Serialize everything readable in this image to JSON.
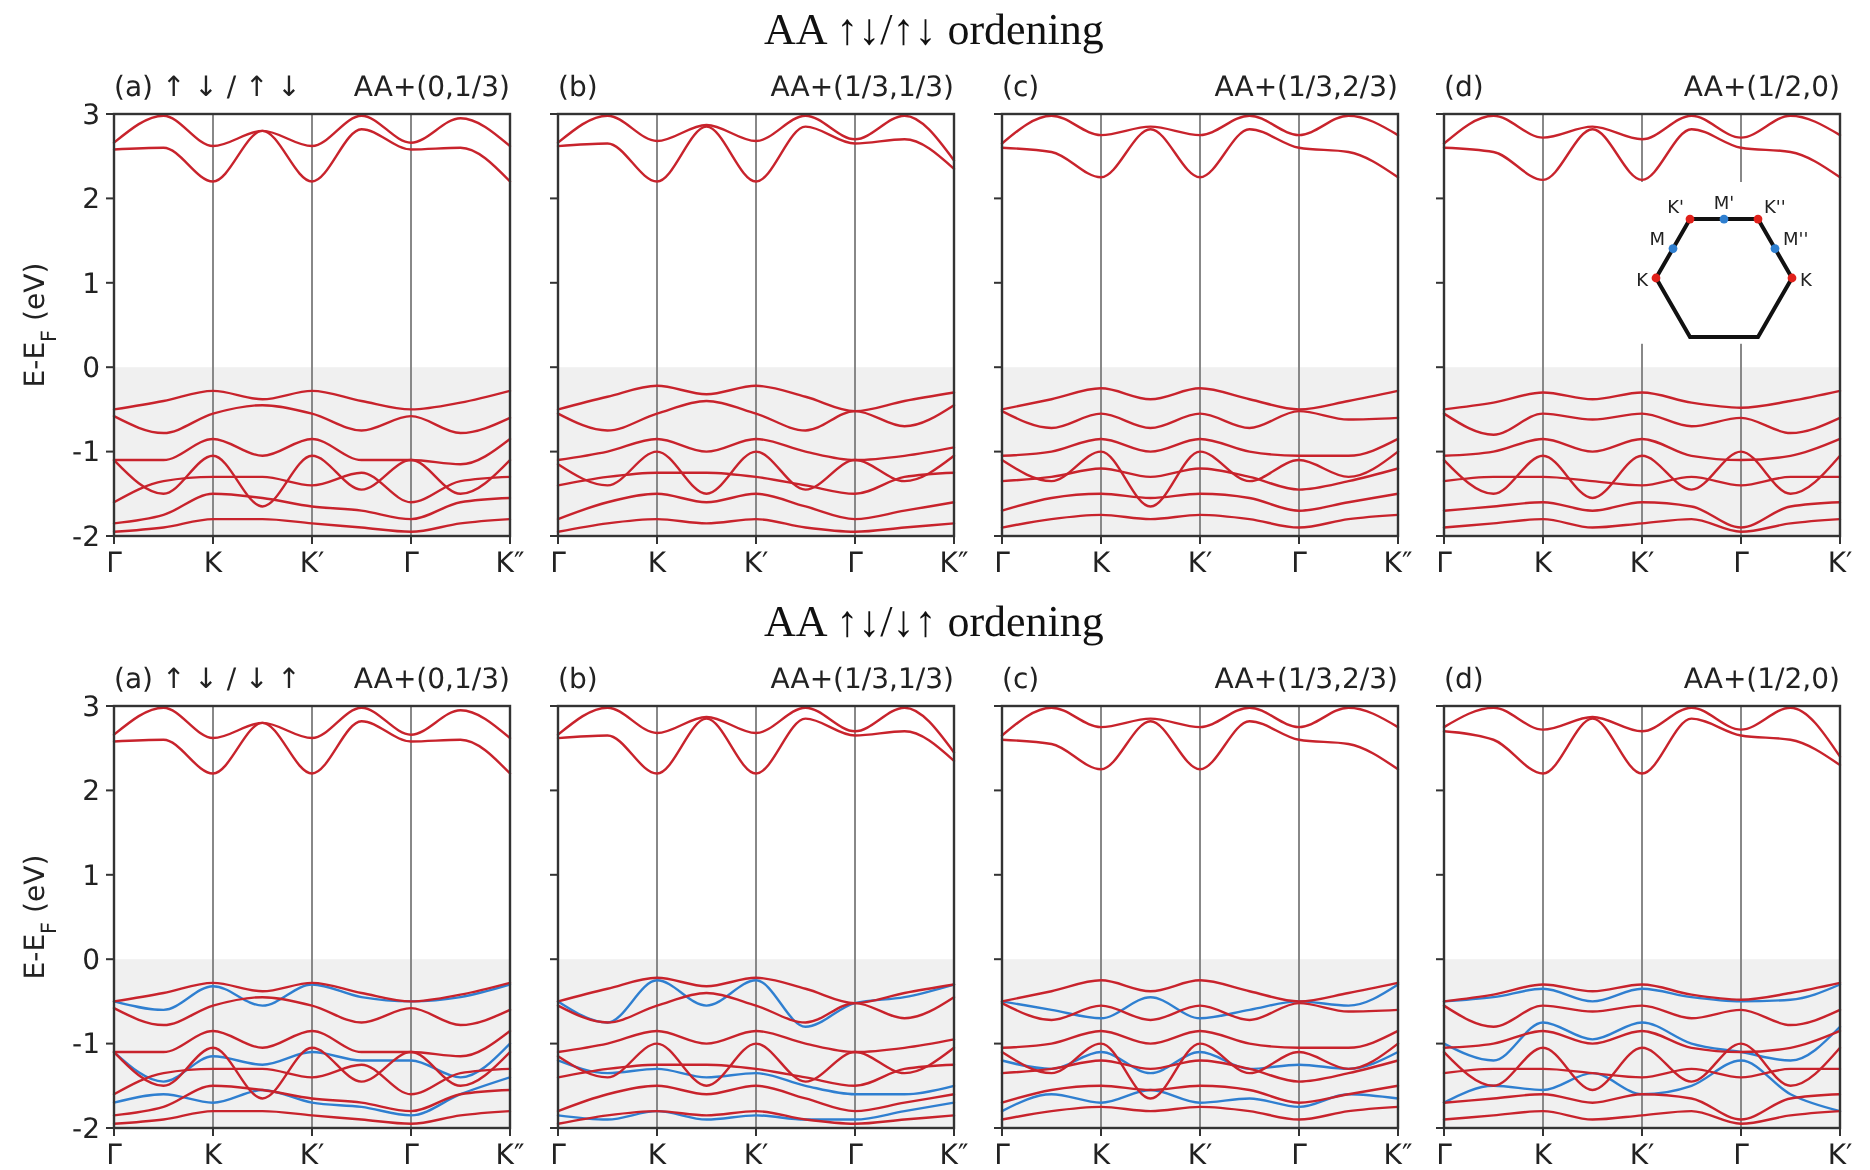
{
  "chart_data": [
    {
      "type": "line",
      "title": "(a)  ↑  ↓ / ↑  ↓",
      "subtitle": "AA+(0,1/3)",
      "ylabel": "E-E$_{F}$ (eV)",
      "annotations": [
        "AA ↑↓/↑↓ ordening"
      ],
      "categories": [
        "Γ",
        null,
        "K",
        null,
        "K′",
        null,
        "Γ",
        null,
        "K″"
      ],
      "ylim": [
        -2,
        3
      ],
      "yticks": [
        -2,
        -1,
        0,
        1,
        2,
        3
      ],
      "grid": "x",
      "bands": [
        {
          "axis": "y",
          "from": -2,
          "to": 0,
          "color": "#f0f0f0"
        }
      ],
      "line_style": "solid",
      "marker": "none",
      "series": [
        {
          "color": "#c8232c",
          "values": [
            2.58,
            2.6,
            2.2,
            2.8,
            2.2,
            2.82,
            2.58,
            2.6,
            2.2
          ]
        },
        {
          "color": "#c8232c",
          "values": [
            2.66,
            2.98,
            2.62,
            2.8,
            2.62,
            2.98,
            2.66,
            2.95,
            2.62
          ]
        },
        {
          "color": "#c8232c",
          "values": [
            -0.5,
            -0.4,
            -0.28,
            -0.38,
            -0.28,
            -0.4,
            -0.5,
            -0.42,
            -0.28
          ]
        },
        {
          "color": "#c8232c",
          "values": [
            -0.58,
            -0.78,
            -0.55,
            -0.45,
            -0.55,
            -0.75,
            -0.58,
            -0.78,
            -0.6
          ]
        },
        {
          "color": "#c8232c",
          "values": [
            -1.1,
            -1.1,
            -0.85,
            -1.05,
            -0.85,
            -1.1,
            -1.1,
            -1.15,
            -0.85
          ]
        },
        {
          "color": "#c8232c",
          "values": [
            -1.1,
            -1.5,
            -1.05,
            -1.65,
            -1.05,
            -1.45,
            -1.1,
            -1.5,
            -1.1
          ]
        },
        {
          "color": "#c8232c",
          "values": [
            -1.6,
            -1.35,
            -1.3,
            -1.3,
            -1.4,
            -1.25,
            -1.6,
            -1.35,
            -1.3
          ]
        },
        {
          "color": "#c8232c",
          "values": [
            -1.85,
            -1.75,
            -1.5,
            -1.55,
            -1.65,
            -1.7,
            -1.8,
            -1.6,
            -1.55
          ]
        },
        {
          "color": "#c8232c",
          "values": [
            -1.95,
            -1.9,
            -1.8,
            -1.8,
            -1.85,
            -1.9,
            -1.95,
            -1.85,
            -1.8
          ]
        }
      ]
    },
    {
      "type": "line",
      "title": "(b)",
      "subtitle": "AA+(1/3,1/3)",
      "tick_labels": "x",
      "categories": [
        "Γ",
        null,
        "K",
        null,
        "K′",
        null,
        "Γ",
        null,
        "K″"
      ],
      "ylim": [
        -2,
        3
      ],
      "yticks": [
        -2,
        -1,
        0,
        1,
        2,
        3
      ],
      "grid": "x",
      "bands": [
        {
          "axis": "y",
          "from": -2,
          "to": 0,
          "color": "#f0f0f0"
        }
      ],
      "line_style": "solid",
      "marker": "none",
      "series": [
        {
          "color": "#c8232c",
          "values": [
            2.62,
            2.65,
            2.2,
            2.85,
            2.2,
            2.85,
            2.65,
            2.7,
            2.35
          ]
        },
        {
          "color": "#c8232c",
          "values": [
            2.66,
            2.98,
            2.68,
            2.87,
            2.68,
            2.98,
            2.7,
            2.98,
            2.45
          ]
        },
        {
          "color": "#c8232c",
          "values": [
            -0.5,
            -0.35,
            -0.22,
            -0.32,
            -0.22,
            -0.35,
            -0.52,
            -0.4,
            -0.3
          ]
        },
        {
          "color": "#c8232c",
          "values": [
            -0.55,
            -0.75,
            -0.55,
            -0.4,
            -0.55,
            -0.75,
            -0.52,
            -0.7,
            -0.45
          ]
        },
        {
          "color": "#c8232c",
          "values": [
            -1.1,
            -1.0,
            -0.85,
            -1.0,
            -0.85,
            -1.0,
            -1.1,
            -1.05,
            -0.95
          ]
        },
        {
          "color": "#c8232c",
          "values": [
            -1.15,
            -1.4,
            -1.0,
            -1.5,
            -1.0,
            -1.45,
            -1.1,
            -1.35,
            -1.05
          ]
        },
        {
          "color": "#c8232c",
          "values": [
            -1.4,
            -1.3,
            -1.25,
            -1.25,
            -1.3,
            -1.4,
            -1.5,
            -1.3,
            -1.25
          ]
        },
        {
          "color": "#c8232c",
          "values": [
            -1.8,
            -1.6,
            -1.5,
            -1.6,
            -1.5,
            -1.65,
            -1.8,
            -1.7,
            -1.6
          ]
        },
        {
          "color": "#c8232c",
          "values": [
            -1.95,
            -1.85,
            -1.8,
            -1.85,
            -1.8,
            -1.9,
            -1.95,
            -1.9,
            -1.85
          ]
        }
      ]
    },
    {
      "type": "line",
      "title": "(c)",
      "subtitle": "AA+(1/3,2/3)",
      "tick_labels": "x",
      "categories": [
        "Γ",
        null,
        "K",
        null,
        "K′",
        null,
        "Γ",
        null,
        "K″"
      ],
      "ylim": [
        -2,
        3
      ],
      "yticks": [
        -2,
        -1,
        0,
        1,
        2,
        3
      ],
      "grid": "x",
      "bands": [
        {
          "axis": "y",
          "from": -2,
          "to": 0,
          "color": "#f0f0f0"
        }
      ],
      "line_style": "solid",
      "marker": "none",
      "series": [
        {
          "color": "#c8232c",
          "values": [
            2.6,
            2.55,
            2.25,
            2.82,
            2.25,
            2.82,
            2.6,
            2.55,
            2.25
          ]
        },
        {
          "color": "#c8232c",
          "values": [
            2.65,
            2.98,
            2.75,
            2.85,
            2.75,
            2.98,
            2.75,
            2.98,
            2.75
          ]
        },
        {
          "color": "#c8232c",
          "values": [
            -0.5,
            -0.38,
            -0.25,
            -0.38,
            -0.25,
            -0.38,
            -0.5,
            -0.4,
            -0.28
          ]
        },
        {
          "color": "#c8232c",
          "values": [
            -0.52,
            -0.72,
            -0.55,
            -0.72,
            -0.55,
            -0.72,
            -0.52,
            -0.62,
            -0.6
          ]
        },
        {
          "color": "#c8232c",
          "values": [
            -1.05,
            -1.0,
            -0.85,
            -1.0,
            -0.85,
            -1.0,
            -1.05,
            -1.05,
            -0.85
          ]
        },
        {
          "color": "#c8232c",
          "values": [
            -1.1,
            -1.35,
            -1.0,
            -1.65,
            -1.0,
            -1.35,
            -1.1,
            -1.3,
            -1.0
          ]
        },
        {
          "color": "#c8232c",
          "values": [
            -1.35,
            -1.3,
            -1.2,
            -1.3,
            -1.2,
            -1.3,
            -1.45,
            -1.35,
            -1.2
          ]
        },
        {
          "color": "#c8232c",
          "values": [
            -1.7,
            -1.55,
            -1.5,
            -1.55,
            -1.5,
            -1.55,
            -1.7,
            -1.6,
            -1.5
          ]
        },
        {
          "color": "#c8232c",
          "values": [
            -1.9,
            -1.8,
            -1.75,
            -1.8,
            -1.75,
            -1.8,
            -1.9,
            -1.8,
            -1.75
          ]
        }
      ]
    },
    {
      "type": "line",
      "title": "(d)",
      "subtitle": "AA+(1/2,0)",
      "tick_labels": "x",
      "annotations": [
        "K'",
        "M'",
        "K''",
        "M",
        "M''",
        "K",
        "K"
      ],
      "categories": [
        "Γ",
        null,
        "K",
        null,
        "K′",
        null,
        "Γ",
        null,
        "K′"
      ],
      "ylim": [
        -2,
        3
      ],
      "yticks": [
        -2,
        -1,
        0,
        1,
        2,
        3
      ],
      "grid": "x",
      "bands": [
        {
          "axis": "y",
          "from": -2,
          "to": 0,
          "color": "#f0f0f0"
        }
      ],
      "line_style": "solid",
      "marker": "none",
      "series": [
        {
          "color": "#c8232c",
          "values": [
            2.6,
            2.55,
            2.22,
            2.82,
            2.22,
            2.82,
            2.6,
            2.55,
            2.25
          ]
        },
        {
          "color": "#c8232c",
          "values": [
            2.65,
            2.98,
            2.72,
            2.85,
            2.7,
            2.98,
            2.72,
            2.98,
            2.75
          ]
        },
        {
          "color": "#c8232c",
          "values": [
            -0.5,
            -0.42,
            -0.3,
            -0.38,
            -0.3,
            -0.42,
            -0.48,
            -0.4,
            -0.28
          ]
        },
        {
          "color": "#c8232c",
          "values": [
            -0.55,
            -0.8,
            -0.55,
            -0.62,
            -0.55,
            -0.7,
            -0.6,
            -0.78,
            -0.6
          ]
        },
        {
          "color": "#c8232c",
          "values": [
            -1.05,
            -1.0,
            -0.85,
            -1.0,
            -0.85,
            -1.05,
            -1.1,
            -1.05,
            -0.85
          ]
        },
        {
          "color": "#c8232c",
          "values": [
            -1.1,
            -1.5,
            -1.05,
            -1.55,
            -1.05,
            -1.45,
            -1.0,
            -1.5,
            -1.05
          ]
        },
        {
          "color": "#c8232c",
          "values": [
            -1.35,
            -1.3,
            -1.3,
            -1.35,
            -1.4,
            -1.3,
            -1.4,
            -1.3,
            -1.3
          ]
        },
        {
          "color": "#c8232c",
          "values": [
            -1.7,
            -1.65,
            -1.6,
            -1.7,
            -1.6,
            -1.65,
            -1.9,
            -1.65,
            -1.6
          ]
        },
        {
          "color": "#c8232c",
          "values": [
            -1.9,
            -1.85,
            -1.8,
            -1.9,
            -1.85,
            -1.8,
            -1.95,
            -1.85,
            -1.8
          ]
        }
      ]
    },
    {
      "type": "line",
      "title": "(a)  ↑  ↓ / ↓  ↑",
      "subtitle": "AA+(0,1/3)",
      "ylabel": "E-E$_{F}$ (eV)",
      "annotations": [
        "AA ↑↓/↓↑ ordening"
      ],
      "categories": [
        "Γ",
        null,
        "K",
        null,
        "K′",
        null,
        "Γ",
        null,
        "K″"
      ],
      "ylim": [
        -2,
        3
      ],
      "yticks": [
        -2,
        -1,
        0,
        1,
        2,
        3
      ],
      "grid": "x",
      "bands": [
        {
          "axis": "y",
          "from": -2,
          "to": 0,
          "color": "#f0f0f0"
        }
      ],
      "line_style": "solid",
      "marker": "none",
      "series": [
        {
          "color": "#2f7fd0",
          "values": [
            -0.5,
            -0.6,
            -0.32,
            -0.55,
            -0.3,
            -0.45,
            -0.5,
            -0.45,
            -0.3
          ]
        },
        {
          "color": "#2f7fd0",
          "values": [
            -1.1,
            -1.45,
            -1.15,
            -1.25,
            -1.1,
            -1.2,
            -1.2,
            -1.4,
            -1.0
          ]
        },
        {
          "color": "#2f7fd0",
          "values": [
            -1.7,
            -1.6,
            -1.7,
            -1.55,
            -1.7,
            -1.75,
            -1.85,
            -1.6,
            -1.4
          ]
        },
        {
          "color": "#c8232c",
          "values": [
            2.58,
            2.6,
            2.2,
            2.8,
            2.2,
            2.82,
            2.58,
            2.6,
            2.2
          ]
        },
        {
          "color": "#c8232c",
          "values": [
            2.66,
            2.98,
            2.62,
            2.8,
            2.62,
            2.98,
            2.66,
            2.95,
            2.62
          ]
        },
        {
          "color": "#c8232c",
          "values": [
            -0.5,
            -0.4,
            -0.28,
            -0.38,
            -0.28,
            -0.4,
            -0.5,
            -0.42,
            -0.28
          ]
        },
        {
          "color": "#c8232c",
          "values": [
            -0.58,
            -0.78,
            -0.55,
            -0.45,
            -0.55,
            -0.75,
            -0.58,
            -0.78,
            -0.6
          ]
        },
        {
          "color": "#c8232c",
          "values": [
            -1.1,
            -1.1,
            -0.85,
            -1.05,
            -0.85,
            -1.1,
            -1.1,
            -1.15,
            -0.85
          ]
        },
        {
          "color": "#c8232c",
          "values": [
            -1.1,
            -1.5,
            -1.05,
            -1.65,
            -1.05,
            -1.45,
            -1.1,
            -1.5,
            -1.1
          ]
        },
        {
          "color": "#c8232c",
          "values": [
            -1.6,
            -1.35,
            -1.3,
            -1.3,
            -1.4,
            -1.25,
            -1.6,
            -1.35,
            -1.3
          ]
        },
        {
          "color": "#c8232c",
          "values": [
            -1.85,
            -1.75,
            -1.5,
            -1.55,
            -1.65,
            -1.7,
            -1.8,
            -1.6,
            -1.55
          ]
        },
        {
          "color": "#c8232c",
          "values": [
            -1.95,
            -1.9,
            -1.8,
            -1.8,
            -1.85,
            -1.9,
            -1.95,
            -1.85,
            -1.8
          ]
        }
      ]
    },
    {
      "type": "line",
      "title": "(b)",
      "subtitle": "AA+(1/3,1/3)",
      "tick_labels": "x",
      "categories": [
        "Γ",
        null,
        "K",
        null,
        "K′",
        null,
        "Γ",
        null,
        "K″"
      ],
      "ylim": [
        -2,
        3
      ],
      "yticks": [
        -2,
        -1,
        0,
        1,
        2,
        3
      ],
      "grid": "x",
      "bands": [
        {
          "axis": "y",
          "from": -2,
          "to": 0,
          "color": "#f0f0f0"
        }
      ],
      "line_style": "solid",
      "marker": "none",
      "series": [
        {
          "color": "#2f7fd0",
          "values": [
            -0.5,
            -0.75,
            -0.25,
            -0.55,
            -0.25,
            -0.8,
            -0.52,
            -0.45,
            -0.3
          ]
        },
        {
          "color": "#2f7fd0",
          "values": [
            -1.2,
            -1.35,
            -1.3,
            -1.4,
            -1.35,
            -1.5,
            -1.6,
            -1.6,
            -1.5
          ]
        },
        {
          "color": "#2f7fd0",
          "values": [
            -1.85,
            -1.9,
            -1.8,
            -1.9,
            -1.85,
            -1.9,
            -1.9,
            -1.8,
            -1.7
          ]
        },
        {
          "color": "#c8232c",
          "values": [
            2.62,
            2.65,
            2.2,
            2.85,
            2.2,
            2.85,
            2.65,
            2.7,
            2.35
          ]
        },
        {
          "color": "#c8232c",
          "values": [
            2.66,
            2.98,
            2.68,
            2.87,
            2.68,
            2.98,
            2.7,
            2.98,
            2.45
          ]
        },
        {
          "color": "#c8232c",
          "values": [
            -0.5,
            -0.35,
            -0.22,
            -0.32,
            -0.22,
            -0.35,
            -0.52,
            -0.4,
            -0.3
          ]
        },
        {
          "color": "#c8232c",
          "values": [
            -0.55,
            -0.75,
            -0.55,
            -0.4,
            -0.55,
            -0.75,
            -0.52,
            -0.7,
            -0.45
          ]
        },
        {
          "color": "#c8232c",
          "values": [
            -1.1,
            -1.0,
            -0.85,
            -1.0,
            -0.85,
            -1.0,
            -1.1,
            -1.05,
            -0.95
          ]
        },
        {
          "color": "#c8232c",
          "values": [
            -1.15,
            -1.4,
            -1.0,
            -1.5,
            -1.0,
            -1.45,
            -1.1,
            -1.35,
            -1.05
          ]
        },
        {
          "color": "#c8232c",
          "values": [
            -1.4,
            -1.3,
            -1.25,
            -1.25,
            -1.3,
            -1.4,
            -1.5,
            -1.3,
            -1.25
          ]
        },
        {
          "color": "#c8232c",
          "values": [
            -1.8,
            -1.6,
            -1.5,
            -1.6,
            -1.5,
            -1.65,
            -1.8,
            -1.7,
            -1.6
          ]
        },
        {
          "color": "#c8232c",
          "values": [
            -1.95,
            -1.85,
            -1.8,
            -1.85,
            -1.8,
            -1.9,
            -1.95,
            -1.9,
            -1.85
          ]
        }
      ]
    },
    {
      "type": "line",
      "title": "(c)",
      "subtitle": "AA+(1/3,2/3)",
      "tick_labels": "x",
      "categories": [
        "Γ",
        null,
        "K",
        null,
        "K′",
        null,
        "Γ",
        null,
        "K″"
      ],
      "ylim": [
        -2,
        3
      ],
      "yticks": [
        -2,
        -1,
        0,
        1,
        2,
        3
      ],
      "grid": "x",
      "bands": [
        {
          "axis": "y",
          "from": -2,
          "to": 0,
          "color": "#f0f0f0"
        }
      ],
      "line_style": "solid",
      "marker": "none",
      "series": [
        {
          "color": "#2f7fd0",
          "values": [
            -0.5,
            -0.6,
            -0.7,
            -0.45,
            -0.7,
            -0.6,
            -0.5,
            -0.55,
            -0.3
          ]
        },
        {
          "color": "#2f7fd0",
          "values": [
            -1.2,
            -1.3,
            -1.1,
            -1.35,
            -1.1,
            -1.3,
            -1.25,
            -1.3,
            -1.1
          ]
        },
        {
          "color": "#2f7fd0",
          "values": [
            -1.8,
            -1.6,
            -1.7,
            -1.55,
            -1.7,
            -1.65,
            -1.75,
            -1.6,
            -1.65
          ]
        },
        {
          "color": "#c8232c",
          "values": [
            2.6,
            2.55,
            2.25,
            2.82,
            2.25,
            2.82,
            2.6,
            2.55,
            2.25
          ]
        },
        {
          "color": "#c8232c",
          "values": [
            2.65,
            2.98,
            2.75,
            2.85,
            2.75,
            2.98,
            2.75,
            2.98,
            2.75
          ]
        },
        {
          "color": "#c8232c",
          "values": [
            -0.5,
            -0.38,
            -0.25,
            -0.38,
            -0.25,
            -0.38,
            -0.5,
            -0.4,
            -0.28
          ]
        },
        {
          "color": "#c8232c",
          "values": [
            -0.52,
            -0.72,
            -0.55,
            -0.72,
            -0.55,
            -0.72,
            -0.52,
            -0.62,
            -0.6
          ]
        },
        {
          "color": "#c8232c",
          "values": [
            -1.05,
            -1.0,
            -0.85,
            -1.0,
            -0.85,
            -1.0,
            -1.05,
            -1.05,
            -0.85
          ]
        },
        {
          "color": "#c8232c",
          "values": [
            -1.1,
            -1.35,
            -1.0,
            -1.65,
            -1.0,
            -1.35,
            -1.1,
            -1.3,
            -1.0
          ]
        },
        {
          "color": "#c8232c",
          "values": [
            -1.35,
            -1.3,
            -1.2,
            -1.3,
            -1.2,
            -1.3,
            -1.45,
            -1.35,
            -1.2
          ]
        },
        {
          "color": "#c8232c",
          "values": [
            -1.7,
            -1.55,
            -1.5,
            -1.55,
            -1.5,
            -1.55,
            -1.7,
            -1.6,
            -1.5
          ]
        },
        {
          "color": "#c8232c",
          "values": [
            -1.9,
            -1.8,
            -1.75,
            -1.8,
            -1.75,
            -1.8,
            -1.9,
            -1.8,
            -1.75
          ]
        }
      ]
    },
    {
      "type": "line",
      "title": "(d)",
      "subtitle": "AA+(1/2,0)",
      "tick_labels": "x",
      "categories": [
        "Γ",
        null,
        "K",
        null,
        "K′",
        null,
        "Γ",
        null,
        "K′"
      ],
      "ylim": [
        -2,
        3
      ],
      "yticks": [
        -2,
        -1,
        0,
        1,
        2,
        3
      ],
      "grid": "x",
      "bands": [
        {
          "axis": "y",
          "from": -2,
          "to": 0,
          "color": "#f0f0f0"
        }
      ],
      "line_style": "solid",
      "marker": "none",
      "series": [
        {
          "color": "#2f7fd0",
          "values": [
            -0.5,
            -0.45,
            -0.35,
            -0.5,
            -0.35,
            -0.45,
            -0.5,
            -0.48,
            -0.3
          ]
        },
        {
          "color": "#2f7fd0",
          "values": [
            -1.0,
            -1.2,
            -0.75,
            -0.95,
            -0.75,
            -1.0,
            -1.1,
            -1.2,
            -0.8
          ]
        },
        {
          "color": "#2f7fd0",
          "values": [
            -1.7,
            -1.5,
            -1.55,
            -1.35,
            -1.6,
            -1.5,
            -1.2,
            -1.6,
            -1.8
          ]
        },
        {
          "color": "#c8232c",
          "values": [
            2.7,
            2.6,
            2.2,
            2.85,
            2.2,
            2.85,
            2.65,
            2.6,
            2.3
          ]
        },
        {
          "color": "#c8232c",
          "values": [
            2.75,
            2.98,
            2.72,
            2.87,
            2.7,
            2.98,
            2.72,
            2.98,
            2.4
          ]
        },
        {
          "color": "#c8232c",
          "values": [
            -0.5,
            -0.42,
            -0.3,
            -0.38,
            -0.3,
            -0.42,
            -0.48,
            -0.4,
            -0.28
          ]
        },
        {
          "color": "#c8232c",
          "values": [
            -0.55,
            -0.8,
            -0.55,
            -0.62,
            -0.55,
            -0.7,
            -0.6,
            -0.78,
            -0.6
          ]
        },
        {
          "color": "#c8232c",
          "values": [
            -1.05,
            -1.0,
            -0.85,
            -1.0,
            -0.85,
            -1.05,
            -1.1,
            -1.05,
            -0.85
          ]
        },
        {
          "color": "#c8232c",
          "values": [
            -1.1,
            -1.5,
            -1.05,
            -1.55,
            -1.05,
            -1.45,
            -1.0,
            -1.5,
            -1.05
          ]
        },
        {
          "color": "#c8232c",
          "values": [
            -1.35,
            -1.3,
            -1.3,
            -1.35,
            -1.4,
            -1.3,
            -1.4,
            -1.3,
            -1.3
          ]
        },
        {
          "color": "#c8232c",
          "values": [
            -1.7,
            -1.65,
            -1.6,
            -1.7,
            -1.6,
            -1.65,
            -1.9,
            -1.65,
            -1.6
          ]
        },
        {
          "color": "#c8232c",
          "values": [
            -1.9,
            -1.85,
            -1.8,
            -1.9,
            -1.85,
            -1.8,
            -1.95,
            -1.85,
            -1.8
          ]
        }
      ]
    }
  ]
}
